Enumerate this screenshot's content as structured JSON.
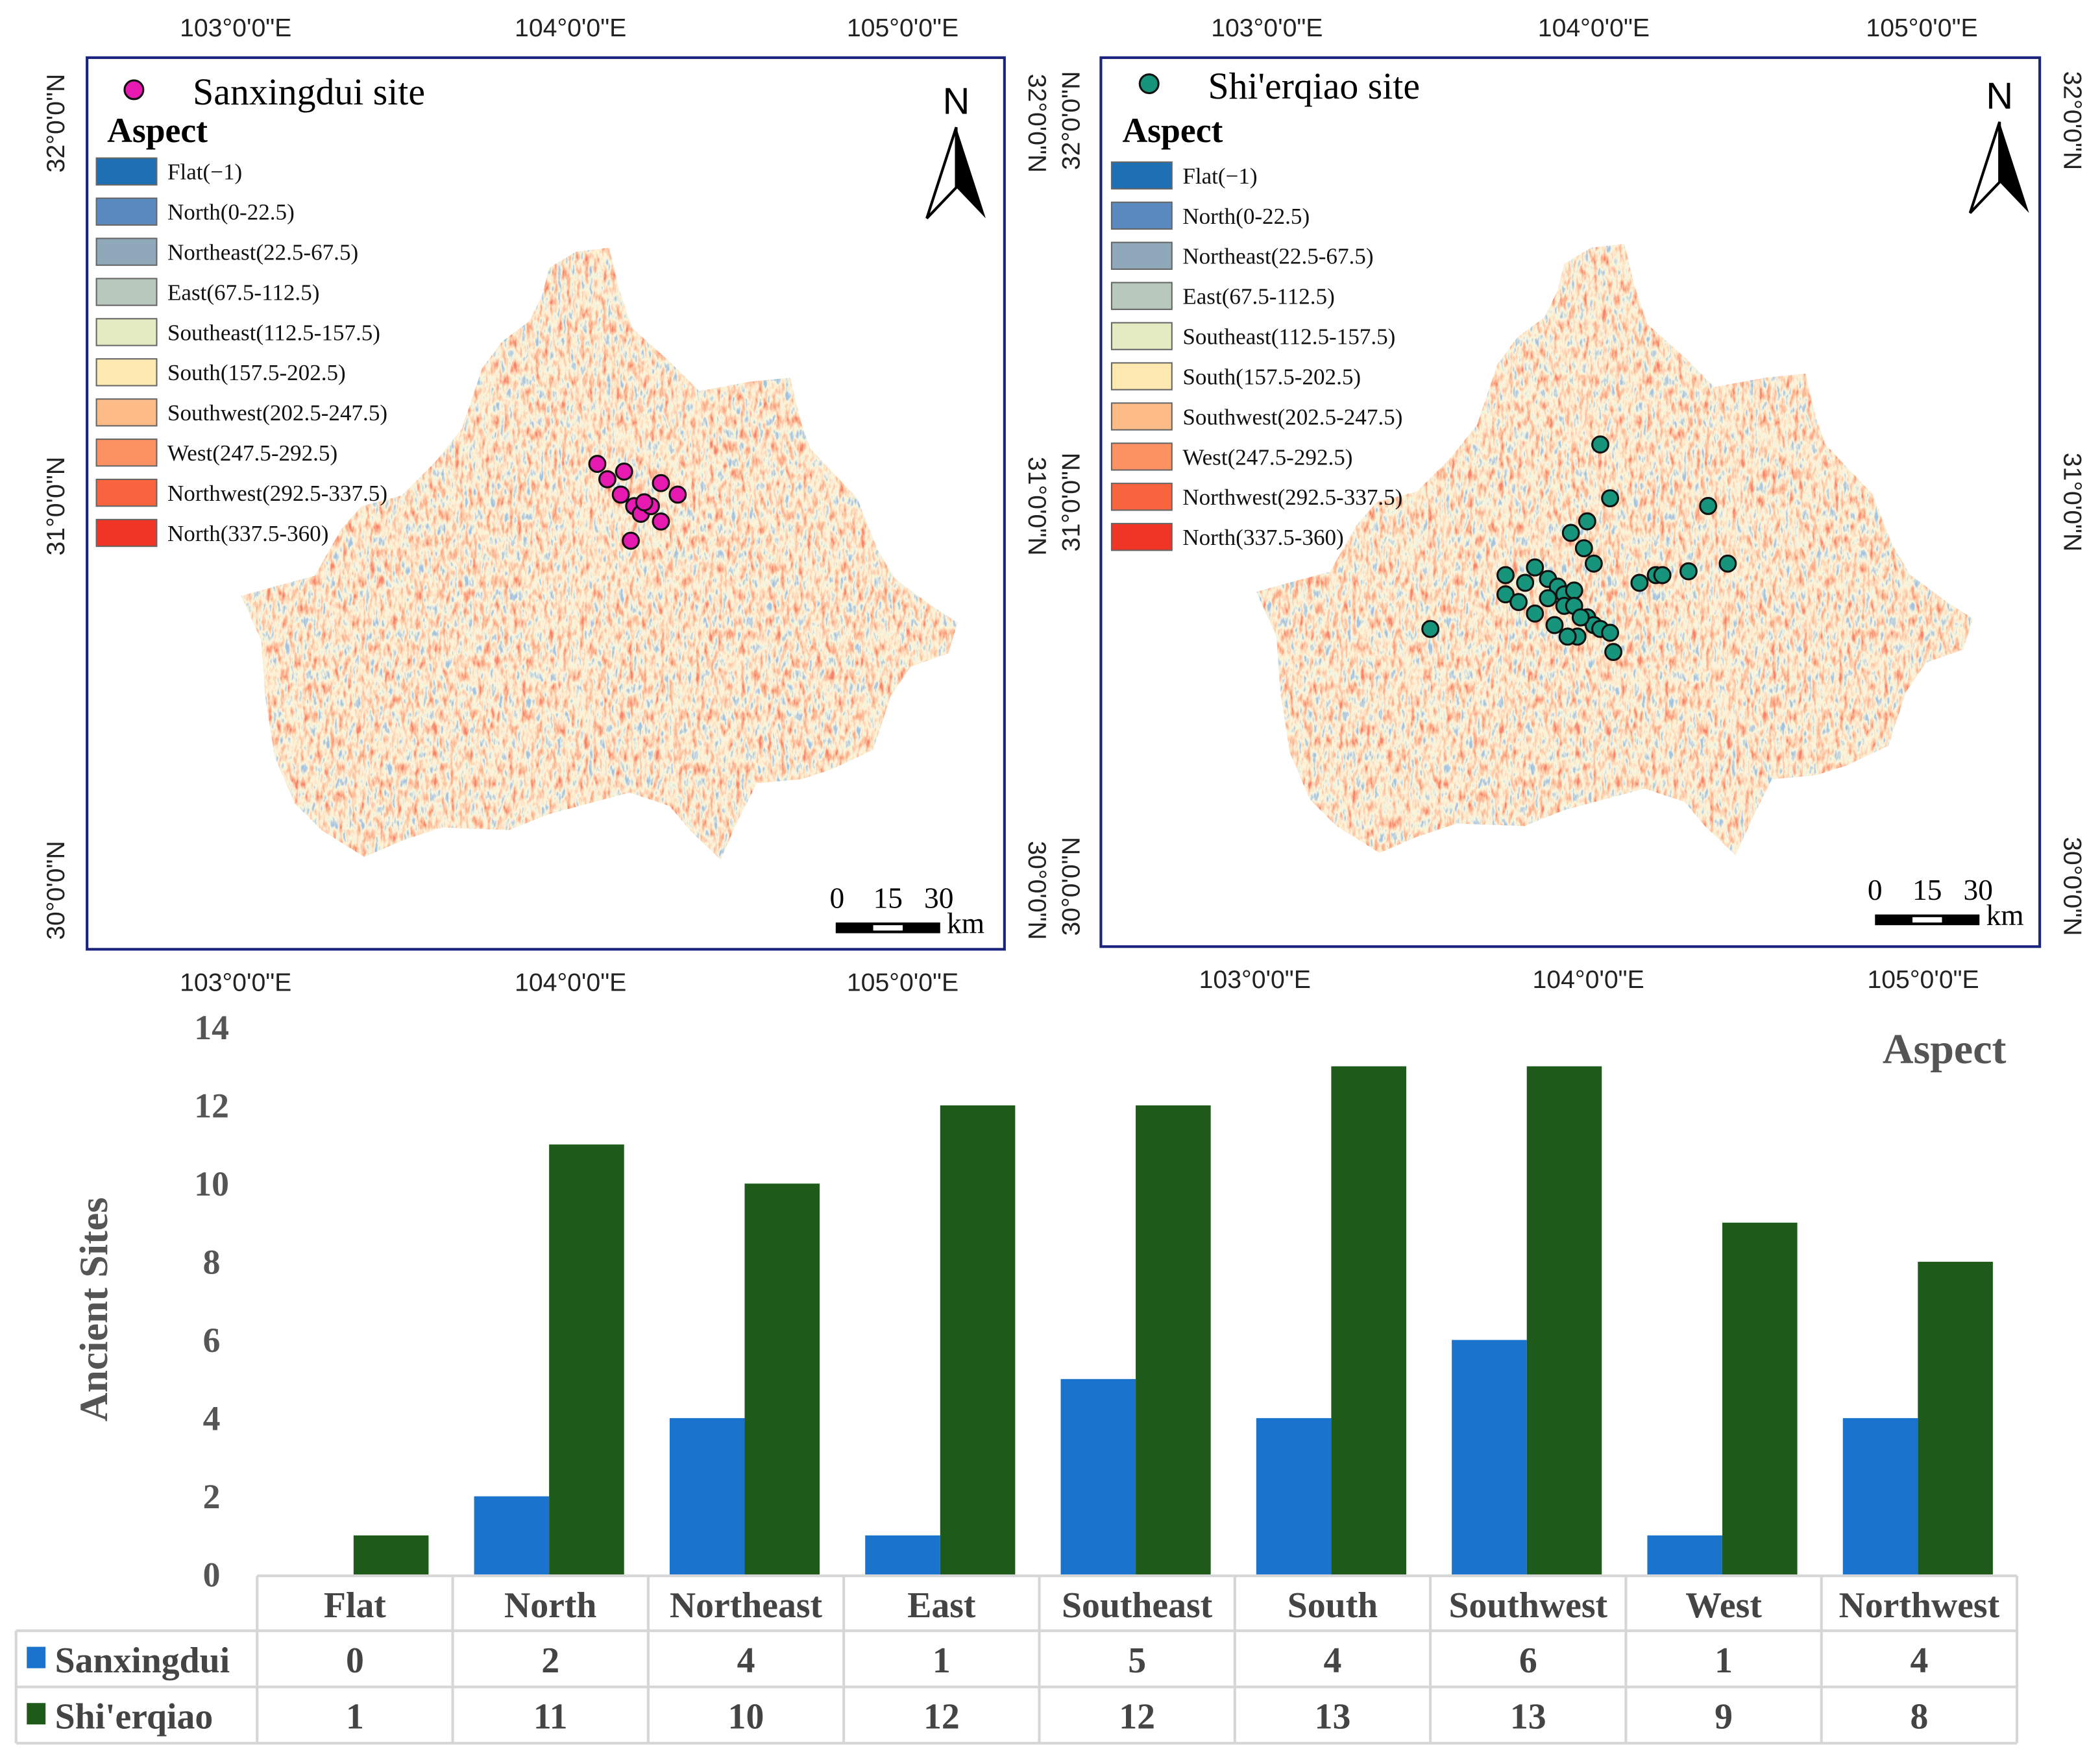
{
  "maps": [
    {
      "title": "Sanxingdui site",
      "marker_color": "#e619b0",
      "lon_ticks": [
        "103°0'0\"E",
        "104°0'0\"E",
        "105°0'0\"E"
      ],
      "lat_ticks": [
        "32°0'0\"N",
        "31°0'0\"N",
        "30°0'0\"N"
      ],
      "sites": [
        [
          104.08,
          31.11
        ],
        [
          104.11,
          31.07
        ],
        [
          104.16,
          31.09
        ],
        [
          104.15,
          31.03
        ],
        [
          104.19,
          31.0
        ],
        [
          104.21,
          30.98
        ],
        [
          104.24,
          31.0
        ],
        [
          104.27,
          31.06
        ],
        [
          104.27,
          30.96
        ],
        [
          104.32,
          31.03
        ],
        [
          104.18,
          30.91
        ],
        [
          104.22,
          31.01
        ]
      ]
    },
    {
      "title": "Shi'erqiao site",
      "marker_color": "#17957c",
      "lon_ticks": [
        "103°0'0\"E",
        "104°0'0\"E",
        "105°0'0\"E"
      ],
      "lat_ticks": [
        "32°0'0\"N",
        "31°0'0\"N",
        "30°0'0\"N"
      ],
      "sites": [
        [
          104.02,
          31.15
        ],
        [
          104.05,
          31.01
        ],
        [
          104.35,
          30.99
        ],
        [
          103.98,
          30.95
        ],
        [
          103.93,
          30.92
        ],
        [
          103.97,
          30.88
        ],
        [
          104.0,
          30.84
        ],
        [
          103.82,
          30.83
        ],
        [
          103.73,
          30.81
        ],
        [
          103.79,
          30.79
        ],
        [
          103.86,
          30.8
        ],
        [
          103.89,
          30.78
        ],
        [
          103.91,
          30.76
        ],
        [
          103.94,
          30.77
        ],
        [
          104.14,
          30.79
        ],
        [
          104.19,
          30.81
        ],
        [
          104.21,
          30.81
        ],
        [
          104.29,
          30.82
        ],
        [
          104.41,
          30.84
        ],
        [
          103.73,
          30.76
        ],
        [
          103.77,
          30.74
        ],
        [
          103.82,
          30.71
        ],
        [
          103.88,
          30.68
        ],
        [
          103.91,
          30.73
        ],
        [
          103.94,
          30.73
        ],
        [
          103.98,
          30.7
        ],
        [
          104.0,
          30.68
        ],
        [
          104.02,
          30.67
        ],
        [
          104.05,
          30.66
        ],
        [
          103.95,
          30.65
        ],
        [
          103.92,
          30.65
        ],
        [
          104.06,
          30.61
        ],
        [
          103.5,
          30.67
        ],
        [
          103.86,
          30.75
        ],
        [
          103.96,
          30.7
        ]
      ]
    }
  ],
  "legend": {
    "title": "Aspect",
    "items": [
      {
        "label": "Flat(−1)",
        "color": "#1f6fb5"
      },
      {
        "label": "North(0-22.5)",
        "color": "#5b8ac0"
      },
      {
        "label": "Northeast(22.5-67.5)",
        "color": "#8fa9bb"
      },
      {
        "label": "East(67.5-112.5)",
        "color": "#b8c8bc"
      },
      {
        "label": "Southeast(112.5-157.5)",
        "color": "#e4ebc3"
      },
      {
        "label": "South(157.5-202.5)",
        "color": "#fde9b0"
      },
      {
        "label": "Southwest(202.5-247.5)",
        "color": "#fdbb87"
      },
      {
        "label": "West(247.5-292.5)",
        "color": "#fc9162"
      },
      {
        "label": "Northwest(292.5-337.5)",
        "color": "#f9643e"
      },
      {
        "label": "North(337.5-360)",
        "color": "#f03426"
      }
    ]
  },
  "north_arrow": "N",
  "scale_bar": {
    "labels": [
      "0",
      "15",
      "30"
    ],
    "unit": "km"
  },
  "chart_data": {
    "type": "bar",
    "title": "Aspect",
    "xlabel": "",
    "ylabel": "Ancient Sites",
    "ylim": [
      0,
      14
    ],
    "yticks": [
      "0",
      "2",
      "4",
      "6",
      "8",
      "10",
      "12",
      "14"
    ],
    "categories": [
      "Flat",
      "North",
      "Northeast",
      "East",
      "Southeast",
      "South",
      "Southwest",
      "West",
      "Northwest"
    ],
    "series": [
      {
        "name": "Sanxingdui",
        "color": "#1a73cc",
        "values": [
          0,
          2,
          4,
          1,
          5,
          4,
          6,
          1,
          4
        ]
      },
      {
        "name": "Shi'erqiao",
        "color": "#1e5b1a",
        "values": [
          1,
          11,
          10,
          12,
          12,
          13,
          13,
          9,
          8
        ]
      }
    ],
    "legend": "table-bottom"
  }
}
